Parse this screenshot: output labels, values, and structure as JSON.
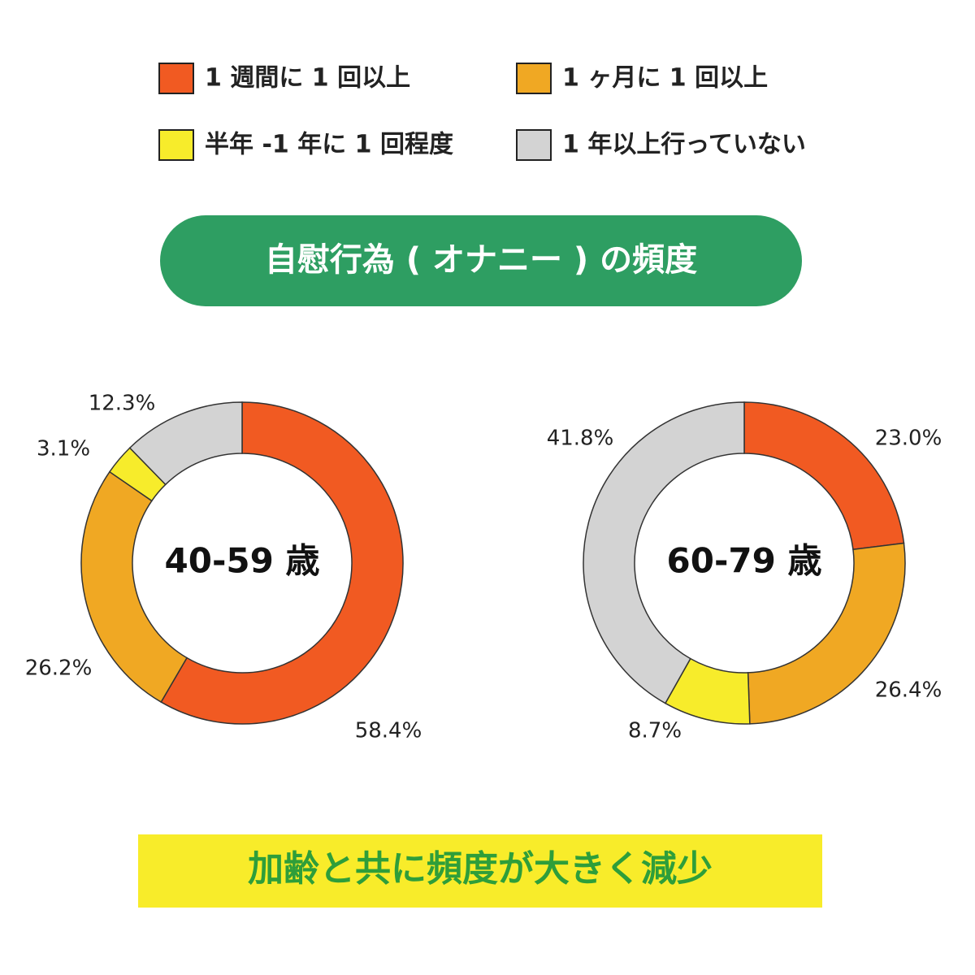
{
  "title": "自慰行為 ( オナニー ) の頻度",
  "categories": [
    "1 週間に 1 回以上",
    "1 ヶ月に 1 回以上",
    "半年 -1 年に 1 回程度",
    "1 年以上行っていない"
  ],
  "colors": [
    "#f15a22",
    "#f0a823",
    "#f7ec2b",
    "#d3d3d3"
  ],
  "chart_data": [
    {
      "type": "pie",
      "donut": true,
      "center_label": "40-59 歳",
      "values": [
        58.4,
        26.2,
        3.1,
        12.3
      ],
      "value_labels": [
        "58.4%",
        "26.2%",
        "3.1%",
        "12.3%"
      ]
    },
    {
      "type": "pie",
      "donut": true,
      "center_label": "60-79 歳",
      "values": [
        23.0,
        26.4,
        8.7,
        41.8
      ],
      "value_labels": [
        "23.0%",
        "26.4%",
        "8.7%",
        "41.8%"
      ]
    }
  ],
  "note": "加齢と共に頻度が大きく減少"
}
